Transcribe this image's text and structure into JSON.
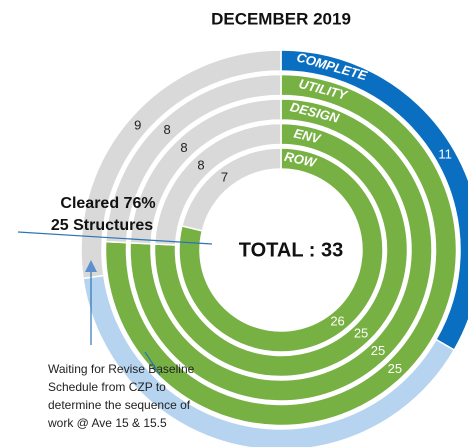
{
  "chart_data": {
    "type": "multi_donut",
    "title": "DECEMBER 2019",
    "center_label": "TOTAL : 33",
    "rings": [
      {
        "name": "COMPLETE",
        "values": [
          11,
          13,
          9
        ],
        "value_labels": [
          "11",
          null,
          "9"
        ],
        "colors": [
          "#0b6fc1",
          "#b6d4ef",
          "#d9d9d9"
        ]
      },
      {
        "name": "UTILITY",
        "values": [
          25,
          8
        ],
        "value_labels": [
          "25",
          "8"
        ],
        "colors": [
          "#77b043",
          "#d9d9d9"
        ]
      },
      {
        "name": "DESIGN",
        "values": [
          25,
          8
        ],
        "value_labels": [
          "25",
          "8"
        ],
        "colors": [
          "#77b043",
          "#d9d9d9"
        ]
      },
      {
        "name": "ENV",
        "values": [
          25,
          8
        ],
        "value_labels": [
          "25",
          "8"
        ],
        "colors": [
          "#77b043",
          "#d9d9d9"
        ]
      },
      {
        "name": "ROW",
        "values": [
          26,
          7
        ],
        "value_labels": [
          "26",
          "7"
        ],
        "colors": [
          "#77b043",
          "#d9d9d9"
        ]
      }
    ],
    "annotations": {
      "cleared": [
        "Cleared 76%",
        "25 Structures"
      ],
      "waiting": [
        "Waiting for Revise Baseline",
        "Schedule from CZP to",
        "determine the sequence of",
        "work @ Ave 15 & 15.5"
      ]
    }
  }
}
